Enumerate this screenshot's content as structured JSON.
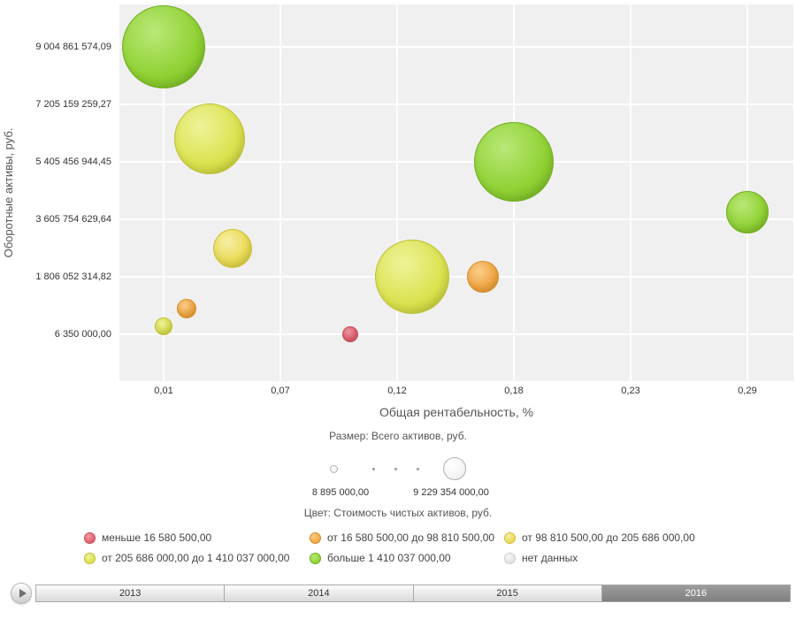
{
  "chart_data": {
    "type": "scatter",
    "subtype": "bubble",
    "xlabel": "Общая рентабельность, %",
    "ylabel": "Оборотные активы, руб.",
    "layout": {
      "background": "#f0f0f0",
      "grid": true,
      "grid_color": "#ffffff",
      "legend_position": "bottom"
    },
    "x_ticks": [
      {
        "label": "0,01",
        "value": 0.01
      },
      {
        "label": "0,07",
        "value": 0.07
      },
      {
        "label": "0,12",
        "value": 0.12
      },
      {
        "label": "0,18",
        "value": 0.18
      },
      {
        "label": "0,23",
        "value": 0.23
      },
      {
        "label": "0,29",
        "value": 0.29
      }
    ],
    "y_ticks": [
      {
        "label": "9 004 861 574,09",
        "value": 9004861574.09
      },
      {
        "label": "7 205 159 259,27",
        "value": 7205159259.27
      },
      {
        "label": "5 405 456 944,45",
        "value": 5405456944.45
      },
      {
        "label": "3 605 754 629,64",
        "value": 3605754629.64
      },
      {
        "label": "1 806 052 314,82",
        "value": 1806052314.82
      },
      {
        "label": "6 350 000,00",
        "value": 6350000.0
      }
    ],
    "points": [
      {
        "x": 0.01,
        "y": 9004861574,
        "r": 47,
        "color": "green"
      },
      {
        "x": 0.032,
        "y": 6120000000,
        "r": 40,
        "color": "yellow_green"
      },
      {
        "x": 0.178,
        "y": 5405456944,
        "r": 45,
        "color": "green"
      },
      {
        "x": 0.29,
        "y": 3820000000,
        "r": 24,
        "color": "green"
      },
      {
        "x": 0.043,
        "y": 2690000000,
        "r": 22,
        "color": "yellow"
      },
      {
        "x": 0.129,
        "y": 1806052315,
        "r": 42,
        "color": "yellow_green"
      },
      {
        "x": 0.163,
        "y": 1806052315,
        "r": 18,
        "color": "orange"
      },
      {
        "x": 0.021,
        "y": 810000000,
        "r": 11,
        "color": "orange"
      },
      {
        "x": 0.01,
        "y": 255000000,
        "r": 10,
        "color": "yellow_green"
      },
      {
        "x": 0.0995,
        "y": 6350000,
        "r": 9,
        "color": "red"
      }
    ],
    "colors": {
      "red": {
        "light": "#f09aa4",
        "fill": "#e2606e",
        "border": "#c74a5a"
      },
      "orange": {
        "light": "#f9cd8a",
        "fill": "#f2a742",
        "border": "#d88c28"
      },
      "yellow": {
        "light": "#f6efa7",
        "fill": "#e9da52",
        "border": "#cfc136"
      },
      "yellow_green": {
        "light": "#eef39a",
        "fill": "#dbe24e",
        "border": "#bcc232"
      },
      "green": {
        "light": "#b9e878",
        "fill": "#8fd133",
        "border": "#6fae1f"
      },
      "gray": {
        "light": "#f6f6f6",
        "fill": "#e4e4e4",
        "border": "#cccccc"
      }
    },
    "size_legend": {
      "title": "Размер: Всего активов, руб.",
      "min_label": "8 895 000,00",
      "max_label": "9 229 354 000,00"
    },
    "color_legend": {
      "title": "Цвет: Стоимость чистых активов, руб.",
      "items": [
        {
          "color": "red",
          "label": "меньше 16 580 500,00"
        },
        {
          "color": "orange",
          "label": "от 16 580 500,00 до 98 810 500,00"
        },
        {
          "color": "yellow",
          "label": "от 98 810 500,00 до 205 686 000,00"
        },
        {
          "color": "yellow_green",
          "label": "от 205 686 000,00 до 1 410 037 000,00"
        },
        {
          "color": "green",
          "label": "больше 1 410 037 000,00"
        },
        {
          "color": "gray",
          "label": "нет данных"
        }
      ]
    }
  },
  "timeline": {
    "years": [
      "2013",
      "2014",
      "2015",
      "2016"
    ],
    "selected_year": "2016"
  }
}
